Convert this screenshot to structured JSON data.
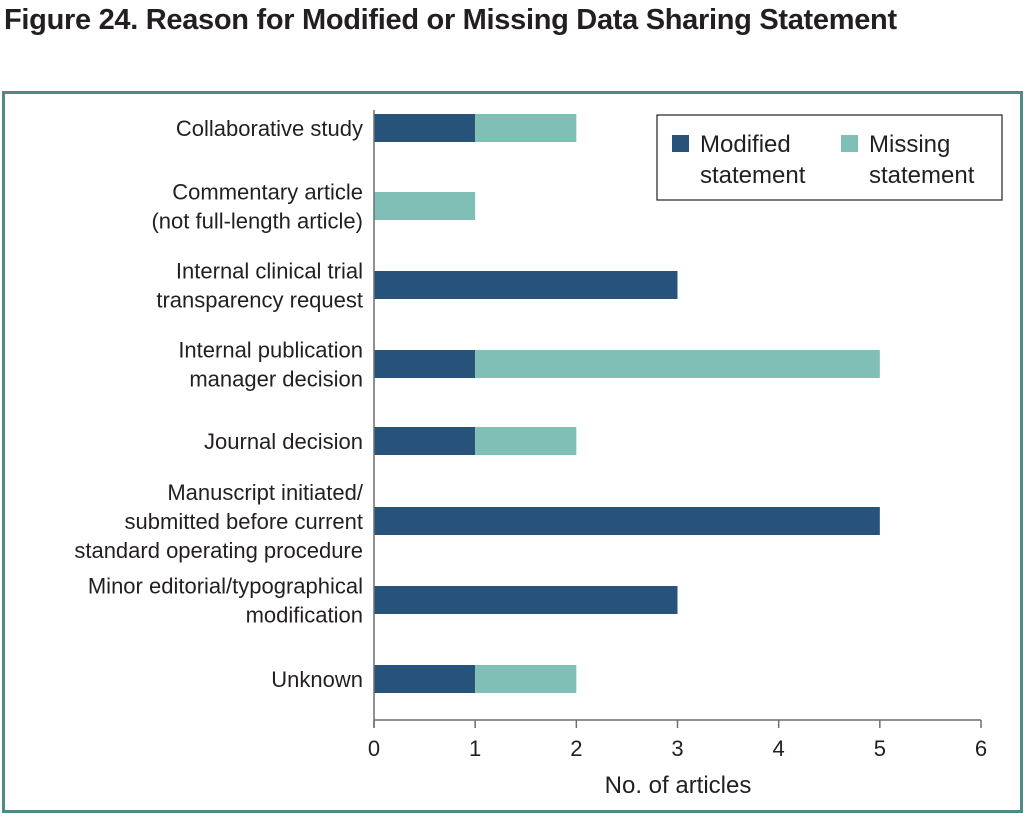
{
  "chart_data": {
    "type": "bar",
    "orientation": "horizontal",
    "stacked": true,
    "title": "Figure 24. Reason for Modified or Missing Data Sharing Statement",
    "categories": [
      [
        "Collaborative study"
      ],
      [
        "Commentary article",
        "(not full-length article)"
      ],
      [
        "Internal clinical trial",
        "transparency request"
      ],
      [
        "Internal publication",
        "manager decision"
      ],
      [
        "Journal decision"
      ],
      [
        "Manuscript initiated/",
        "submitted before current",
        "standard operating procedure"
      ],
      [
        "Minor editorial/typographical",
        "modification"
      ],
      [
        "Unknown"
      ]
    ],
    "series": [
      {
        "name": [
          "Modified",
          "statement"
        ],
        "color": "#27537b",
        "values": [
          1,
          0,
          3,
          1,
          1,
          5,
          3,
          1
        ]
      },
      {
        "name": [
          "Missing",
          "statement"
        ],
        "color": "#7fbfb5",
        "values": [
          1,
          1,
          0,
          4,
          1,
          0,
          0,
          1
        ]
      }
    ],
    "xlabel": "No. of articles",
    "ylabel": "",
    "xlim": [
      0,
      6
    ],
    "xticks": [
      "0",
      "1",
      "2",
      "3",
      "4",
      "5",
      "6"
    ],
    "grid": false,
    "legend_position": "top-right"
  }
}
